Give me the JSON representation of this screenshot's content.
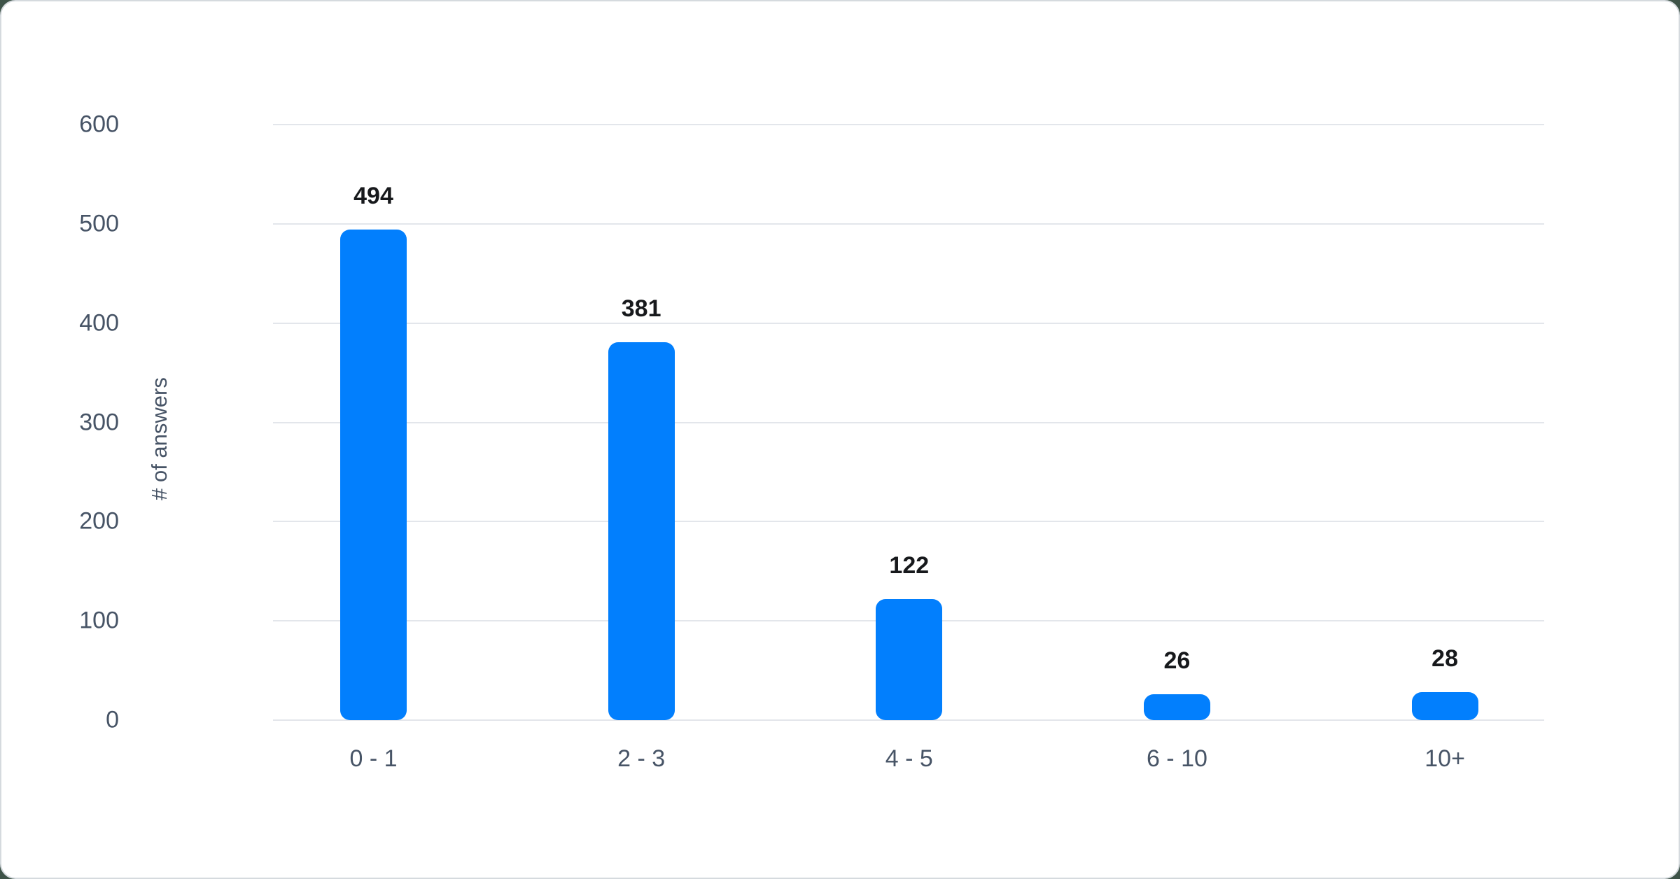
{
  "page": {
    "background_color": "#3e5348",
    "card": {
      "background_color": "#ffffff",
      "border_color": "#d5dade"
    }
  },
  "chart_data": {
    "type": "bar",
    "title": "",
    "xlabel": "",
    "ylabel": "# of answers",
    "categories": [
      "0 - 1",
      "2 - 3",
      "4 - 5",
      "6 - 10",
      "10+"
    ],
    "values": [
      494,
      381,
      122,
      26,
      28
    ],
    "value_labels": [
      "494",
      "381",
      "122",
      "26",
      "28"
    ],
    "ylim": [
      0,
      600
    ],
    "yticks": [
      600,
      500,
      400,
      300,
      200,
      100,
      0
    ],
    "grid": "horizontal-only",
    "legend_position": "none",
    "colors": {
      "bar": "#027ffd",
      "value_label": "#17191c",
      "axis_label": "#475466",
      "gridline": "#e3e6eb"
    }
  }
}
